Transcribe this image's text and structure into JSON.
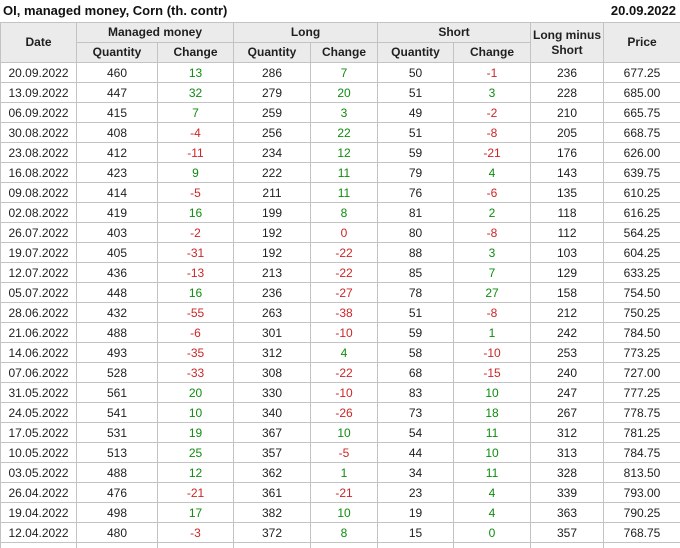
{
  "chart_data": {
    "type": "table",
    "title": "OI, managed money, Corn (th. contr)",
    "report_date": "20.09.2022",
    "column_groups": {
      "managed_money": "Managed money",
      "long": "Long",
      "short": "Short"
    },
    "columns": {
      "date": "Date",
      "quantity": "Quantity",
      "change": "Change",
      "long_minus_short": "Long minus Short",
      "price": "Price"
    },
    "rows": [
      {
        "date": "20.09.2022",
        "mm": {
          "q": "460",
          "c": "13",
          "s": "pos"
        },
        "long": {
          "q": "286",
          "c": "7",
          "s": "pos"
        },
        "short": {
          "q": "50",
          "c": "-1",
          "s": "neg"
        },
        "lms": "236",
        "price": "677.25"
      },
      {
        "date": "13.09.2022",
        "mm": {
          "q": "447",
          "c": "32",
          "s": "pos"
        },
        "long": {
          "q": "279",
          "c": "20",
          "s": "pos"
        },
        "short": {
          "q": "51",
          "c": "3",
          "s": "pos"
        },
        "lms": "228",
        "price": "685.00"
      },
      {
        "date": "06.09.2022",
        "mm": {
          "q": "415",
          "c": "7",
          "s": "pos"
        },
        "long": {
          "q": "259",
          "c": "3",
          "s": "pos"
        },
        "short": {
          "q": "49",
          "c": "-2",
          "s": "neg"
        },
        "lms": "210",
        "price": "665.75"
      },
      {
        "date": "30.08.2022",
        "mm": {
          "q": "408",
          "c": "-4",
          "s": "neg"
        },
        "long": {
          "q": "256",
          "c": "22",
          "s": "pos"
        },
        "short": {
          "q": "51",
          "c": "-8",
          "s": "neg"
        },
        "lms": "205",
        "price": "668.75"
      },
      {
        "date": "23.08.2022",
        "mm": {
          "q": "412",
          "c": "-11",
          "s": "neg"
        },
        "long": {
          "q": "234",
          "c": "12",
          "s": "pos"
        },
        "short": {
          "q": "59",
          "c": "-21",
          "s": "neg"
        },
        "lms": "176",
        "price": "626.00"
      },
      {
        "date": "16.08.2022",
        "mm": {
          "q": "423",
          "c": "9",
          "s": "pos"
        },
        "long": {
          "q": "222",
          "c": "11",
          "s": "pos"
        },
        "short": {
          "q": "79",
          "c": "4",
          "s": "pos"
        },
        "lms": "143",
        "price": "639.75"
      },
      {
        "date": "09.08.2022",
        "mm": {
          "q": "414",
          "c": "-5",
          "s": "neg"
        },
        "long": {
          "q": "211",
          "c": "11",
          "s": "pos"
        },
        "short": {
          "q": "76",
          "c": "-6",
          "s": "neg"
        },
        "lms": "135",
        "price": "610.25"
      },
      {
        "date": "02.08.2022",
        "mm": {
          "q": "419",
          "c": "16",
          "s": "pos"
        },
        "long": {
          "q": "199",
          "c": "8",
          "s": "pos"
        },
        "short": {
          "q": "81",
          "c": "2",
          "s": "pos"
        },
        "lms": "118",
        "price": "616.25"
      },
      {
        "date": "26.07.2022",
        "mm": {
          "q": "403",
          "c": "-2",
          "s": "neg"
        },
        "long": {
          "q": "192",
          "c": "0",
          "s": "neg"
        },
        "short": {
          "q": "80",
          "c": "-8",
          "s": "neg"
        },
        "lms": "112",
        "price": "564.25"
      },
      {
        "date": "19.07.2022",
        "mm": {
          "q": "405",
          "c": "-31",
          "s": "neg"
        },
        "long": {
          "q": "192",
          "c": "-22",
          "s": "neg"
        },
        "short": {
          "q": "88",
          "c": "3",
          "s": "pos"
        },
        "lms": "103",
        "price": "604.25"
      },
      {
        "date": "12.07.2022",
        "mm": {
          "q": "436",
          "c": "-13",
          "s": "neg"
        },
        "long": {
          "q": "213",
          "c": "-22",
          "s": "neg"
        },
        "short": {
          "q": "85",
          "c": "7",
          "s": "pos"
        },
        "lms": "129",
        "price": "633.25"
      },
      {
        "date": "05.07.2022",
        "mm": {
          "q": "448",
          "c": "16",
          "s": "pos"
        },
        "long": {
          "q": "236",
          "c": "-27",
          "s": "neg"
        },
        "short": {
          "q": "78",
          "c": "27",
          "s": "pos"
        },
        "lms": "158",
        "price": "754.50"
      },
      {
        "date": "28.06.2022",
        "mm": {
          "q": "432",
          "c": "-55",
          "s": "neg"
        },
        "long": {
          "q": "263",
          "c": "-38",
          "s": "neg"
        },
        "short": {
          "q": "51",
          "c": "-8",
          "s": "neg"
        },
        "lms": "212",
        "price": "750.25"
      },
      {
        "date": "21.06.2022",
        "mm": {
          "q": "488",
          "c": "-6",
          "s": "neg"
        },
        "long": {
          "q": "301",
          "c": "-10",
          "s": "neg"
        },
        "short": {
          "q": "59",
          "c": "1",
          "s": "pos"
        },
        "lms": "242",
        "price": "784.50"
      },
      {
        "date": "14.06.2022",
        "mm": {
          "q": "493",
          "c": "-35",
          "s": "neg"
        },
        "long": {
          "q": "312",
          "c": "4",
          "s": "pos"
        },
        "short": {
          "q": "58",
          "c": "-10",
          "s": "neg"
        },
        "lms": "253",
        "price": "773.25"
      },
      {
        "date": "07.06.2022",
        "mm": {
          "q": "528",
          "c": "-33",
          "s": "neg"
        },
        "long": {
          "q": "308",
          "c": "-22",
          "s": "neg"
        },
        "short": {
          "q": "68",
          "c": "-15",
          "s": "neg"
        },
        "lms": "240",
        "price": "727.00"
      },
      {
        "date": "31.05.2022",
        "mm": {
          "q": "561",
          "c": "20",
          "s": "pos"
        },
        "long": {
          "q": "330",
          "c": "-10",
          "s": "neg"
        },
        "short": {
          "q": "83",
          "c": "10",
          "s": "pos"
        },
        "lms": "247",
        "price": "777.25"
      },
      {
        "date": "24.05.2022",
        "mm": {
          "q": "541",
          "c": "10",
          "s": "pos"
        },
        "long": {
          "q": "340",
          "c": "-26",
          "s": "neg"
        },
        "short": {
          "q": "73",
          "c": "18",
          "s": "pos"
        },
        "lms": "267",
        "price": "778.75"
      },
      {
        "date": "17.05.2022",
        "mm": {
          "q": "531",
          "c": "19",
          "s": "pos"
        },
        "long": {
          "q": "367",
          "c": "10",
          "s": "pos"
        },
        "short": {
          "q": "54",
          "c": "11",
          "s": "pos"
        },
        "lms": "312",
        "price": "781.25"
      },
      {
        "date": "10.05.2022",
        "mm": {
          "q": "513",
          "c": "25",
          "s": "pos"
        },
        "long": {
          "q": "357",
          "c": "-5",
          "s": "neg"
        },
        "short": {
          "q": "44",
          "c": "10",
          "s": "pos"
        },
        "lms": "313",
        "price": "784.75"
      },
      {
        "date": "03.05.2022",
        "mm": {
          "q": "488",
          "c": "12",
          "s": "pos"
        },
        "long": {
          "q": "362",
          "c": "1",
          "s": "pos"
        },
        "short": {
          "q": "34",
          "c": "11",
          "s": "pos"
        },
        "lms": "328",
        "price": "813.50"
      },
      {
        "date": "26.04.2022",
        "mm": {
          "q": "476",
          "c": "-21",
          "s": "neg"
        },
        "long": {
          "q": "361",
          "c": "-21",
          "s": "neg"
        },
        "short": {
          "q": "23",
          "c": "4",
          "s": "pos"
        },
        "lms": "339",
        "price": "793.00"
      },
      {
        "date": "19.04.2022",
        "mm": {
          "q": "498",
          "c": "17",
          "s": "pos"
        },
        "long": {
          "q": "382",
          "c": "10",
          "s": "pos"
        },
        "short": {
          "q": "19",
          "c": "4",
          "s": "pos"
        },
        "lms": "363",
        "price": "790.25"
      },
      {
        "date": "12.04.2022",
        "mm": {
          "q": "480",
          "c": "-3",
          "s": "neg"
        },
        "long": {
          "q": "372",
          "c": "8",
          "s": "pos"
        },
        "short": {
          "q": "15",
          "c": "0",
          "s": "pos"
        },
        "lms": "357",
        "price": "768.75"
      }
    ]
  },
  "colors": {
    "positive_change": "#0e8c0e",
    "negative_change": "#cc2626",
    "header_background": "#ebebeb",
    "grid_border": "#c3c3c3"
  }
}
